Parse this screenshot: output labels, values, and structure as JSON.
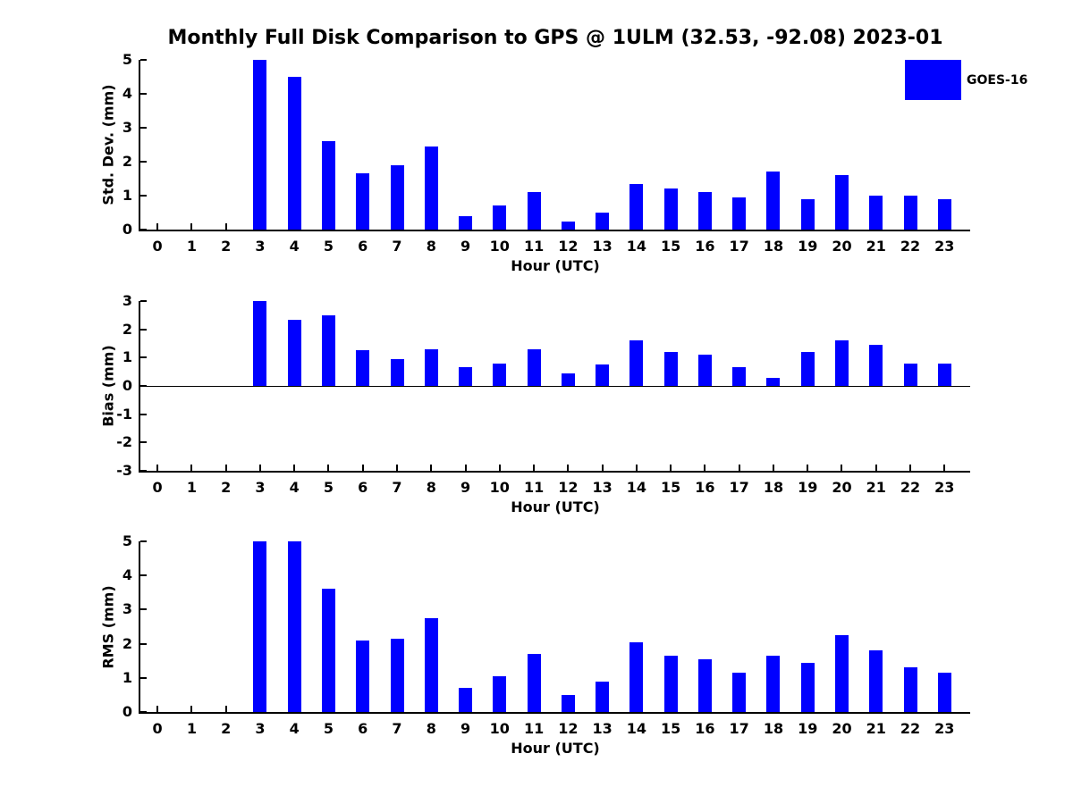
{
  "title": "Monthly Full Disk Comparison to GPS @ 1ULM (32.53, -92.08) 2023-01",
  "legend": {
    "label": "GOES-16",
    "color": "#0000FF",
    "position": "top-right"
  },
  "chart_data": [
    {
      "type": "bar",
      "name": "std-dev",
      "ylabel": "Std. Dev. (mm)",
      "xlabel": "Hour (UTC)",
      "series_name": "GOES-16",
      "bar_color": "#0000FF",
      "categories": [
        0,
        1,
        2,
        3,
        4,
        5,
        6,
        7,
        8,
        9,
        10,
        11,
        12,
        13,
        14,
        15,
        16,
        17,
        18,
        19,
        20,
        21,
        22,
        23
      ],
      "values": [
        0,
        0,
        0,
        5.0,
        4.5,
        2.6,
        1.65,
        1.9,
        2.45,
        0.4,
        0.7,
        1.1,
        0.25,
        0.5,
        1.35,
        1.2,
        1.1,
        0.95,
        1.7,
        0.9,
        1.6,
        1.0,
        1.0,
        0.9
      ],
      "ylim": [
        0,
        5
      ],
      "yticks": [
        0,
        1,
        2,
        3,
        4,
        5
      ],
      "xlim": [
        -0.5,
        23.75
      ],
      "grid": false
    },
    {
      "type": "bar",
      "name": "bias",
      "ylabel": "Bias (mm)",
      "xlabel": "Hour (UTC)",
      "series_name": "GOES-16",
      "bar_color": "#0000FF",
      "categories": [
        0,
        1,
        2,
        3,
        4,
        5,
        6,
        7,
        8,
        9,
        10,
        11,
        12,
        13,
        14,
        15,
        16,
        17,
        18,
        19,
        20,
        21,
        22,
        23
      ],
      "values": [
        0,
        0,
        0,
        3.0,
        2.35,
        2.5,
        1.25,
        0.95,
        1.3,
        0.65,
        0.8,
        1.3,
        0.45,
        0.75,
        1.6,
        1.2,
        1.1,
        0.65,
        0.3,
        1.2,
        1.6,
        1.45,
        0.8,
        0.8
      ],
      "ylim": [
        -3,
        3
      ],
      "yticks": [
        -3,
        -2,
        -1,
        0,
        1,
        2,
        3
      ],
      "xlim": [
        -0.5,
        23.75
      ],
      "zero_line": true,
      "grid": false
    },
    {
      "type": "bar",
      "name": "rms",
      "ylabel": "RMS (mm)",
      "xlabel": "Hour (UTC)",
      "series_name": "GOES-16",
      "bar_color": "#0000FF",
      "categories": [
        0,
        1,
        2,
        3,
        4,
        5,
        6,
        7,
        8,
        9,
        10,
        11,
        12,
        13,
        14,
        15,
        16,
        17,
        18,
        19,
        20,
        21,
        22,
        23
      ],
      "values": [
        0,
        0,
        0,
        5.0,
        5.0,
        3.6,
        2.1,
        2.15,
        2.75,
        0.7,
        1.05,
        1.7,
        0.5,
        0.9,
        2.05,
        1.65,
        1.55,
        1.15,
        1.65,
        1.45,
        2.25,
        1.8,
        1.3,
        1.15
      ],
      "ylim": [
        0,
        5
      ],
      "yticks": [
        0,
        1,
        2,
        3,
        4,
        5
      ],
      "xlim": [
        -0.5,
        23.75
      ],
      "grid": false
    }
  ]
}
